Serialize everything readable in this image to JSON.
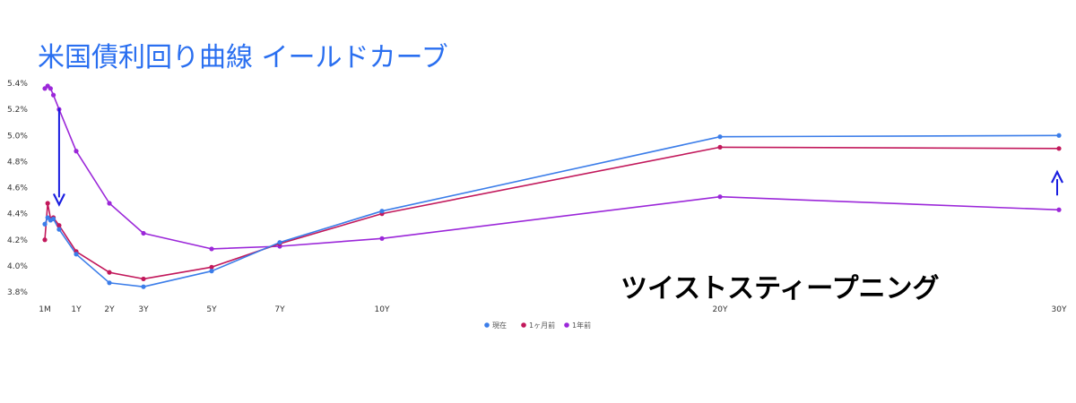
{
  "chart_data": {
    "type": "line",
    "title": "米国債利回り曲線 イールドカーブ",
    "annotation": "ツイストスティープニング",
    "y_ticks": [
      "3.8%",
      "4.0%",
      "4.2%",
      "4.4%",
      "4.6%",
      "4.8%",
      "5.0%",
      "5.2%",
      "5.4%"
    ],
    "ylim": [
      3.75,
      5.45
    ],
    "x_ticks": [
      {
        "label": "1M",
        "x": 1
      },
      {
        "label": "1Y",
        "x": 12
      },
      {
        "label": "2Y",
        "x": 24
      },
      {
        "label": "3Y",
        "x": 36
      },
      {
        "label": "5Y",
        "x": 60
      },
      {
        "label": "7Y",
        "x": 84
      },
      {
        "label": "10Y",
        "x": 120
      },
      {
        "label": "20Y",
        "x": 240
      },
      {
        "label": "30Y",
        "x": 360
      }
    ],
    "x_months": [
      1,
      2,
      3,
      4,
      6,
      12,
      24,
      36,
      60,
      84,
      120,
      240,
      360
    ],
    "legend_position": "bottom",
    "grid": false,
    "series": [
      {
        "name": "現在",
        "color": "#3b7de9",
        "values": [
          4.32,
          4.37,
          4.35,
          4.36,
          4.28,
          4.09,
          3.87,
          3.84,
          3.96,
          4.18,
          4.42,
          4.99,
          5.0
        ]
      },
      {
        "name": "1ヶ月前",
        "color": "#c2185b",
        "values": [
          4.2,
          4.48,
          4.36,
          4.37,
          4.31,
          4.11,
          3.95,
          3.9,
          3.99,
          4.17,
          4.4,
          4.91,
          4.9
        ]
      },
      {
        "name": "1年前",
        "color": "#9b27d9",
        "values": [
          5.36,
          5.38,
          5.36,
          5.31,
          5.2,
          4.88,
          4.48,
          4.25,
          4.13,
          4.15,
          4.21,
          4.53,
          4.43
        ]
      }
    ],
    "arrows": [
      {
        "x": 6,
        "y_from": 5.21,
        "y_to": 4.47
      },
      {
        "x": 360,
        "y_from": 4.54,
        "y_to": 4.72
      }
    ],
    "arrow_color": "#1a1ee0"
  }
}
